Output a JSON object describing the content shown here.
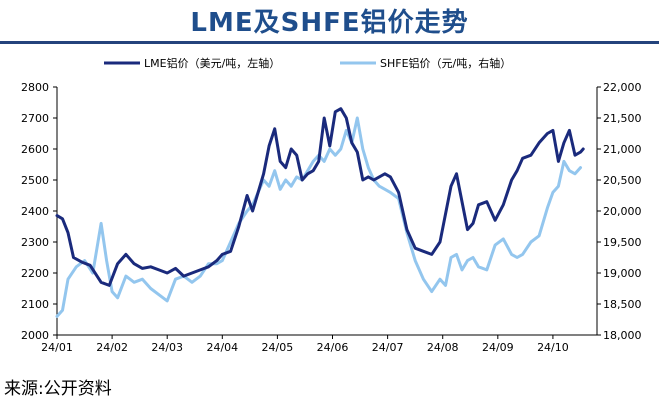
{
  "page": {
    "title": "LME及SHFE铝价走势",
    "source": "来源:公开资料"
  },
  "colors": {
    "lme": "#1a2a7c",
    "shfe": "#93c6ee",
    "title": "#1f4e8c",
    "divider": "#24437c"
  },
  "chart_data": {
    "type": "line",
    "grid": false,
    "legend_position": "top",
    "x_ticks": [
      "24/01",
      "24/02",
      "24/03",
      "24/04",
      "24/05",
      "24/06",
      "24/07",
      "24/08",
      "24/09",
      "24/10"
    ],
    "y_left": {
      "min": 2000,
      "max": 2800,
      "ticks": [
        "2000",
        "2100",
        "2200",
        "2300",
        "2400",
        "2500",
        "2600",
        "2700",
        "2800"
      ]
    },
    "y_right": {
      "min": 18000,
      "max": 22000,
      "ticks": [
        "18,000",
        "18,500",
        "19,000",
        "19,500",
        "20,000",
        "20,500",
        "21,000",
        "21,500",
        "22,000"
      ]
    },
    "series": [
      {
        "name": "LME铝价（美元/吨，左轴）",
        "axis": "left",
        "x": [
          0,
          0.1,
          0.2,
          0.3,
          0.45,
          0.6,
          0.8,
          0.95,
          1.1,
          1.25,
          1.4,
          1.55,
          1.7,
          1.85,
          2.0,
          2.15,
          2.3,
          2.45,
          2.6,
          2.75,
          2.9,
          3.0,
          3.15,
          3.3,
          3.45,
          3.55,
          3.65,
          3.75,
          3.85,
          3.95,
          4.05,
          4.15,
          4.25,
          4.35,
          4.45,
          4.55,
          4.65,
          4.75,
          4.85,
          4.95,
          5.05,
          5.15,
          5.25,
          5.35,
          5.45,
          5.55,
          5.65,
          5.75,
          5.85,
          5.95,
          6.05,
          6.2,
          6.35,
          6.5,
          6.65,
          6.8,
          6.95,
          7.05,
          7.15,
          7.25,
          7.35,
          7.45,
          7.55,
          7.65,
          7.8,
          7.95,
          8.1,
          8.25,
          8.35,
          8.45,
          8.6,
          8.75,
          8.9,
          9.0,
          9.1,
          9.2,
          9.3,
          9.4,
          9.5,
          9.55
        ],
        "y": [
          2385,
          2375,
          2330,
          2250,
          2235,
          2225,
          2170,
          2160,
          2230,
          2260,
          2230,
          2215,
          2220,
          2210,
          2200,
          2215,
          2190,
          2200,
          2210,
          2220,
          2240,
          2260,
          2270,
          2350,
          2450,
          2400,
          2460,
          2520,
          2610,
          2665,
          2560,
          2540,
          2600,
          2580,
          2500,
          2520,
          2530,
          2560,
          2700,
          2610,
          2720,
          2730,
          2700,
          2620,
          2590,
          2500,
          2510,
          2500,
          2510,
          2520,
          2510,
          2460,
          2340,
          2280,
          2270,
          2260,
          2300,
          2390,
          2480,
          2520,
          2430,
          2340,
          2360,
          2420,
          2430,
          2370,
          2420,
          2500,
          2530,
          2570,
          2580,
          2620,
          2650,
          2660,
          2560,
          2620,
          2660,
          2580,
          2590,
          2600
        ]
      },
      {
        "name": "SHFE铝价（元/吨，右轴）",
        "axis": "right",
        "x": [
          0,
          0.1,
          0.2,
          0.35,
          0.5,
          0.65,
          0.8,
          0.9,
          1.0,
          1.1,
          1.25,
          1.4,
          1.55,
          1.7,
          1.85,
          2.0,
          2.15,
          2.3,
          2.45,
          2.6,
          2.75,
          2.9,
          3.0,
          3.15,
          3.3,
          3.45,
          3.55,
          3.65,
          3.75,
          3.85,
          3.95,
          4.05,
          4.15,
          4.25,
          4.35,
          4.45,
          4.55,
          4.65,
          4.75,
          4.85,
          4.95,
          5.05,
          5.15,
          5.25,
          5.35,
          5.45,
          5.55,
          5.65,
          5.75,
          5.85,
          5.95,
          6.05,
          6.2,
          6.35,
          6.5,
          6.65,
          6.8,
          6.95,
          7.05,
          7.15,
          7.25,
          7.35,
          7.45,
          7.55,
          7.65,
          7.8,
          7.95,
          8.1,
          8.25,
          8.35,
          8.45,
          8.6,
          8.75,
          8.9,
          9.0,
          9.1,
          9.2,
          9.3,
          9.4,
          9.5
        ],
        "y": [
          18300,
          18400,
          18900,
          19100,
          19200,
          19000,
          19800,
          19200,
          18700,
          18600,
          18950,
          18850,
          18900,
          18750,
          18650,
          18550,
          18900,
          18950,
          18850,
          18950,
          19150,
          19150,
          19200,
          19500,
          19800,
          20000,
          20100,
          20300,
          20500,
          20400,
          20650,
          20350,
          20500,
          20400,
          20550,
          20500,
          20650,
          20800,
          20900,
          20800,
          21000,
          20900,
          21000,
          21300,
          21100,
          21500,
          21000,
          20700,
          20500,
          20400,
          20350,
          20300,
          20200,
          19650,
          19200,
          18900,
          18700,
          18900,
          18800,
          19250,
          19300,
          19050,
          19200,
          19250,
          19100,
          19050,
          19450,
          19550,
          19300,
          19250,
          19300,
          19500,
          19600,
          20050,
          20300,
          20400,
          20800,
          20650,
          20600,
          20700
        ]
      }
    ]
  }
}
